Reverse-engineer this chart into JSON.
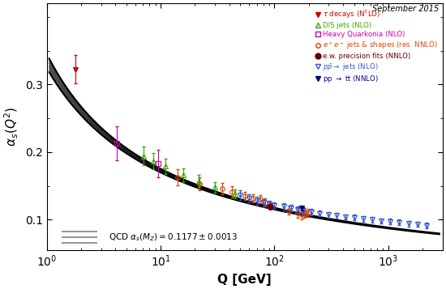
{
  "title_annotation": "September 2015",
  "ylabel": "$\\alpha_s(Q^2)$",
  "xlabel": "Q [GeV]",
  "xlim": [
    1,
    3000
  ],
  "ylim": [
    0.055,
    0.42
  ],
  "yticks": [
    0.1,
    0.2,
    0.3
  ],
  "qcd_label": "QCD $\\alpha_s(M_Z) = 0.1177 \\pm 0.0013$",
  "alpha_s_mz": 0.1177,
  "alpha_s_err": 0.0013,
  "tau_decays": {
    "Q": [
      1.78
    ],
    "alpha_s": [
      0.322
    ],
    "err_up": [
      0.021
    ],
    "err_dn": [
      0.021
    ],
    "color": "#cc0000",
    "label": "$\\tau$ decays (N$^3$LO)",
    "marker": "v",
    "markersize": 5,
    "filled": true
  },
  "dis_jets": {
    "Q": [
      7.1,
      8.6,
      11.1,
      15.7,
      21.5,
      30.0,
      45.0
    ],
    "alpha_s": [
      0.194,
      0.186,
      0.179,
      0.166,
      0.157,
      0.148,
      0.138
    ],
    "err_up": [
      0.014,
      0.012,
      0.011,
      0.01,
      0.009,
      0.008,
      0.007
    ],
    "err_dn": [
      0.014,
      0.012,
      0.011,
      0.01,
      0.009,
      0.008,
      0.007
    ],
    "color": "#33aa00",
    "label": "DIS jets (NLO)",
    "marker": "^",
    "markersize": 5,
    "filled": false
  },
  "heavy_quarkonia": {
    "Q": [
      4.1,
      9.46
    ],
    "alpha_s": [
      0.213,
      0.183
    ],
    "err_up": [
      0.025,
      0.02
    ],
    "err_dn": [
      0.025,
      0.02
    ],
    "color": "#cc00aa",
    "label": "Heavy Quarkonia (NLO)",
    "marker": "s",
    "markersize": 4,
    "filled": false
  },
  "ee_jets": {
    "Q": [
      14.0,
      22.0,
      34.6,
      42.4,
      55.0,
      65.0,
      75.7,
      82.3,
      91.2,
      133.0,
      161.0,
      172.0,
      183.0,
      189.0,
      197.0
    ],
    "alpha_s": [
      0.163,
      0.153,
      0.146,
      0.141,
      0.135,
      0.132,
      0.13,
      0.126,
      0.121,
      0.114,
      0.11,
      0.107,
      0.11,
      0.109,
      0.11
    ],
    "err_up": [
      0.012,
      0.01,
      0.008,
      0.008,
      0.006,
      0.006,
      0.006,
      0.006,
      0.006,
      0.007,
      0.007,
      0.007,
      0.007,
      0.005,
      0.006
    ],
    "err_dn": [
      0.012,
      0.01,
      0.008,
      0.008,
      0.006,
      0.006,
      0.006,
      0.006,
      0.006,
      0.007,
      0.007,
      0.007,
      0.007,
      0.005,
      0.006
    ],
    "color": "#dd4400",
    "label": "$e^+e^-$ jets & shapes$_{\\mathrm{(res.\\,NNLO)}}$",
    "marker": "o",
    "markersize": 4,
    "filled": false
  },
  "ew_precision": {
    "Q": [
      91.2
    ],
    "alpha_s": [
      0.119
    ],
    "err_up": [
      0.0026
    ],
    "err_dn": [
      0.0026
    ],
    "color": "#660000",
    "label": "e.w. precision fits (NNLO)",
    "marker": "o",
    "markersize": 5,
    "filled": true
  },
  "ppbar_jets": {
    "Q": [
      50.0,
      60.0,
      70.0,
      80.0,
      90.0,
      100.0,
      120.0,
      140.0,
      160.0,
      180.0,
      210.0,
      250.0,
      300.0,
      350.0,
      420.0,
      500.0,
      600.0,
      720.0,
      860.0,
      1032.0,
      1250.0,
      1500.0,
      1800.0,
      2150.0
    ],
    "alpha_s": [
      0.136,
      0.131,
      0.128,
      0.125,
      0.123,
      0.121,
      0.119,
      0.117,
      0.115,
      0.113,
      0.111,
      0.109,
      0.107,
      0.106,
      0.104,
      0.103,
      0.101,
      0.1,
      0.098,
      0.097,
      0.096,
      0.094,
      0.093,
      0.091
    ],
    "err_up": [
      0.007,
      0.006,
      0.006,
      0.005,
      0.005,
      0.005,
      0.005,
      0.005,
      0.005,
      0.005,
      0.005,
      0.004,
      0.004,
      0.004,
      0.004,
      0.004,
      0.004,
      0.004,
      0.004,
      0.004,
      0.004,
      0.004,
      0.004,
      0.004
    ],
    "err_dn": [
      0.007,
      0.006,
      0.006,
      0.005,
      0.005,
      0.005,
      0.005,
      0.005,
      0.005,
      0.005,
      0.005,
      0.004,
      0.004,
      0.004,
      0.004,
      0.004,
      0.004,
      0.004,
      0.004,
      0.004,
      0.004,
      0.004,
      0.004,
      0.004
    ],
    "color": "#3355cc",
    "label": "$p\\bar{p} \\rightarrow$ jets (NLO)",
    "marker": "v",
    "markersize": 4,
    "filled": false
  },
  "pp_tt": {
    "Q": [
      172.0
    ],
    "alpha_s": [
      0.117
    ],
    "err_up": [
      0.004
    ],
    "err_dn": [
      0.004
    ],
    "color": "#000088",
    "label": "pp $\\rightarrow$ tt$\\overline{\\mathrm{t}}$ (NNLO)",
    "marker": "v",
    "markersize": 5,
    "filled": true
  },
  "background_color": "#ffffff"
}
